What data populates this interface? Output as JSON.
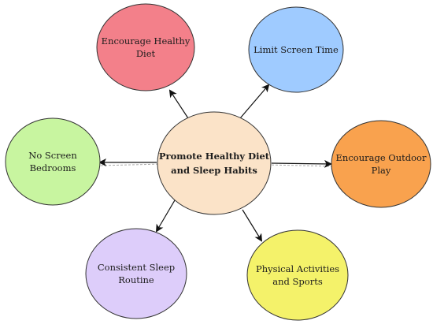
{
  "center": {
    "lines": [
      "Promote Healthy Diet",
      "and Sleep Habits"
    ],
    "fill": "#fbe3c8"
  },
  "nodes": [
    {
      "id": "encourage-healthy-diet",
      "lines": [
        "Encourage Healthy",
        "Diet"
      ],
      "fill": "#f3808a"
    },
    {
      "id": "limit-screen-time",
      "lines": [
        "Limit Screen Time"
      ],
      "fill": "#9fcbff"
    },
    {
      "id": "encourage-outdoor-play",
      "lines": [
        "Encourage Outdoor",
        "Play"
      ],
      "fill": "#f9a24e"
    },
    {
      "id": "physical-activities-sports",
      "lines": [
        "Physical Activities",
        "and Sports"
      ],
      "fill": "#f4f26a"
    },
    {
      "id": "consistent-sleep-routine",
      "lines": [
        "Consistent Sleep",
        "Routine"
      ],
      "fill": "#ddcdfa"
    },
    {
      "id": "no-screen-bedrooms",
      "lines": [
        "No Screen",
        "Bedrooms"
      ],
      "fill": "#c8f5a0"
    }
  ],
  "stroke_color": "#333333",
  "arrow_color": "#111111",
  "dashed_line_color": "#a9a9a9"
}
